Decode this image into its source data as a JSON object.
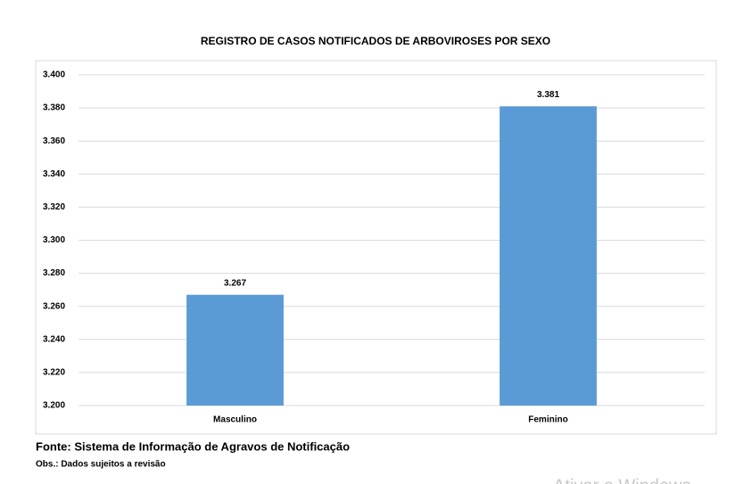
{
  "chart_data": {
    "type": "bar",
    "title": "REGISTRO DE CASOS NOTIFICADOS DE ARBOVIROSES POR SEXO",
    "categories": [
      "Masculino",
      "Feminino"
    ],
    "values": [
      3267,
      3381
    ],
    "value_labels": [
      "3.267",
      "3.381"
    ],
    "color": "#5b9bd5",
    "ylim": [
      3200,
      3400
    ],
    "yticks": [
      {
        "value": 3200,
        "label": "3.200"
      },
      {
        "value": 3220,
        "label": "3.220"
      },
      {
        "value": 3240,
        "label": "3.240"
      },
      {
        "value": 3260,
        "label": "3.260"
      },
      {
        "value": 3280,
        "label": "3.280"
      },
      {
        "value": 3300,
        "label": "3.300"
      },
      {
        "value": 3320,
        "label": "3.320"
      },
      {
        "value": 3340,
        "label": "3.340"
      },
      {
        "value": 3360,
        "label": "3.360"
      },
      {
        "value": 3380,
        "label": "3.380"
      },
      {
        "value": 3400,
        "label": "3.400"
      }
    ],
    "grid": true
  },
  "footer": {
    "source": "Fonte: Sistema de Informação de Agravos de Notificação",
    "note": "Obs.: Dados sujeitos a revisão"
  },
  "watermark": "Ativar o Windows"
}
